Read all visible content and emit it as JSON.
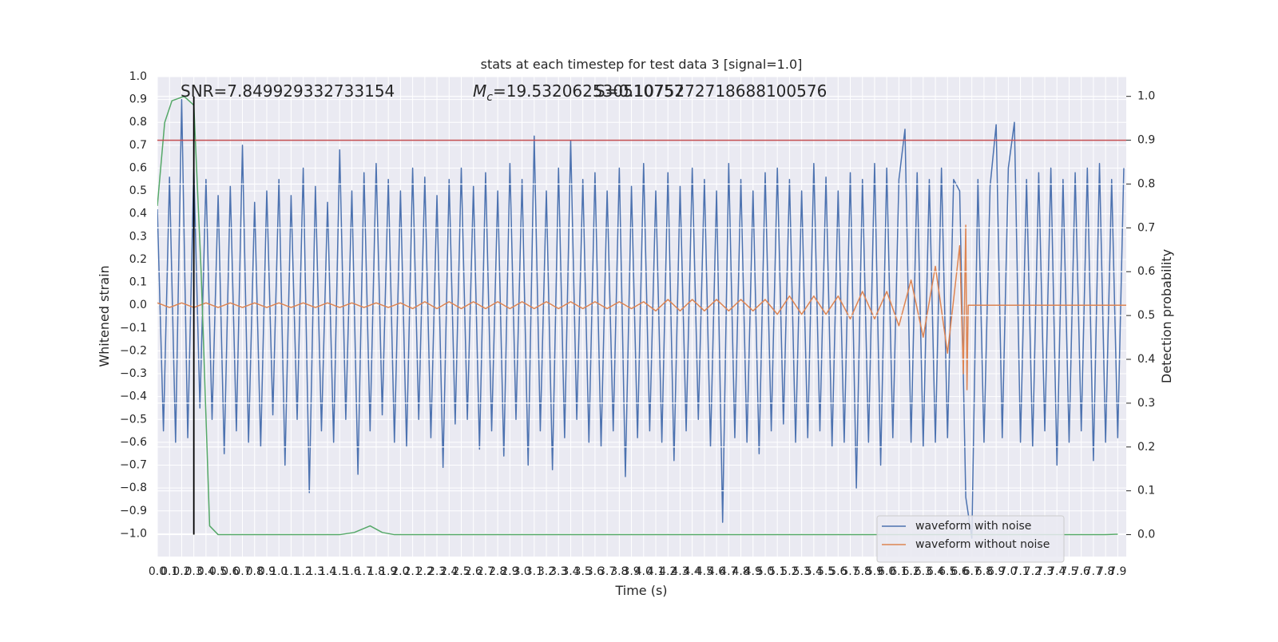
{
  "chart_data": {
    "type": "line",
    "title": "stats at each timestep for test data 3 [signal=1.0]",
    "xlabel": "Time (s)",
    "ylabel": "Whitened strain",
    "y2label": "Detection probability",
    "grid": true,
    "legend": "lower right",
    "xlim": [
      0,
      7.97
    ],
    "ylim": [
      -1.1,
      1.0
    ],
    "y2lim": [
      -0.05,
      1.045
    ],
    "xticks": [
      {
        "value": 0,
        "label": "0.0"
      },
      0.1,
      0.2,
      0.3,
      0.4,
      0.5,
      0.6,
      0.7,
      0.8,
      0.9,
      {
        "value": 1,
        "label": "1.0"
      },
      1.1,
      1.2,
      1.3,
      1.4,
      1.5,
      1.6,
      1.7,
      1.8,
      1.9,
      {
        "value": 2,
        "label": "2.0"
      },
      2.1,
      2.2,
      2.3,
      2.4,
      2.5,
      2.6,
      2.7,
      2.8,
      2.9,
      {
        "value": 3,
        "label": "3.0"
      },
      3.1,
      3.2,
      3.3,
      3.4,
      3.5,
      3.6,
      3.7,
      3.8,
      3.9,
      {
        "value": 4,
        "label": "4.0"
      },
      4.1,
      4.2,
      4.3,
      4.4,
      4.5,
      4.6,
      4.7,
      4.8,
      4.9,
      {
        "value": 5,
        "label": "5.0"
      },
      5.1,
      5.2,
      5.3,
      5.4,
      5.5,
      5.6,
      5.7,
      5.8,
      5.9,
      {
        "value": 6,
        "label": "6.0"
      },
      6.1,
      6.2,
      6.3,
      6.4,
      6.5,
      6.6,
      6.7,
      6.8,
      6.9,
      {
        "value": 7,
        "label": "7.0"
      },
      7.1,
      7.2,
      7.3,
      7.4,
      7.5,
      7.6,
      7.7,
      7.8,
      7.9
    ],
    "yticks": [
      {
        "value": -1,
        "label": "−1.0"
      },
      {
        "value": -0.9,
        "label": "−0.9"
      },
      {
        "value": -0.8,
        "label": "−0.8"
      },
      {
        "value": -0.7,
        "label": "−0.7"
      },
      {
        "value": -0.6,
        "label": "−0.6"
      },
      {
        "value": -0.5,
        "label": "−0.5"
      },
      {
        "value": -0.4,
        "label": "−0.4"
      },
      {
        "value": -0.3,
        "label": "−0.3"
      },
      {
        "value": -0.2,
        "label": "−0.2"
      },
      {
        "value": -0.1,
        "label": "−0.1"
      },
      {
        "value": 0,
        "label": "0.0"
      },
      0.1,
      0.2,
      0.3,
      0.4,
      0.5,
      0.6,
      0.7,
      0.8,
      0.9,
      {
        "value": 1,
        "label": "1.0"
      }
    ],
    "y2ticks": [
      {
        "value": 0,
        "label": "0.0"
      },
      0.1,
      0.2,
      0.3,
      0.4,
      0.5,
      0.6,
      0.7,
      0.8,
      0.9,
      {
        "value": 1,
        "label": "1.0"
      }
    ],
    "annotations": [
      {
        "text": "SNR=7.849929332733154"
      },
      {
        "symbol": "M",
        "subscript": "c",
        "text": "=19.532062530510757"
      },
      {
        "text": "S=0.1075272718688100576"
      }
    ],
    "series": [
      {
        "name": "waveform with noise",
        "color": "#4c72b0",
        "x": [
          0,
          0.05,
          0.1,
          0.15,
          0.2,
          0.25,
          0.3,
          0.35,
          0.4,
          0.45,
          0.5,
          0.55,
          0.6,
          0.65,
          0.7,
          0.75,
          0.8,
          0.85,
          0.9,
          0.95,
          1,
          1.05,
          1.1,
          1.15,
          1.2,
          1.25,
          1.3,
          1.35,
          1.4,
          1.45,
          1.5,
          1.55,
          1.6,
          1.65,
          1.7,
          1.75,
          1.8,
          1.85,
          1.9,
          1.95,
          2,
          2.05,
          2.1,
          2.15,
          2.2,
          2.25,
          2.3,
          2.35,
          2.4,
          2.45,
          2.5,
          2.55,
          2.6,
          2.65,
          2.7,
          2.75,
          2.8,
          2.85,
          2.9,
          2.95,
          3,
          3.05,
          3.1,
          3.15,
          3.2,
          3.25,
          3.3,
          3.35,
          3.4,
          3.45,
          3.5,
          3.55,
          3.6,
          3.65,
          3.7,
          3.75,
          3.8,
          3.85,
          3.9,
          3.95,
          4,
          4.05,
          4.1,
          4.15,
          4.2,
          4.25,
          4.3,
          4.35,
          4.4,
          4.45,
          4.5,
          4.55,
          4.6,
          4.65,
          4.7,
          4.75,
          4.8,
          4.85,
          4.9,
          4.95,
          5,
          5.05,
          5.1,
          5.15,
          5.2,
          5.25,
          5.3,
          5.35,
          5.4,
          5.45,
          5.5,
          5.55,
          5.6,
          5.65,
          5.7,
          5.75,
          5.8,
          5.85,
          5.9,
          5.95,
          6,
          6.05,
          6.1,
          6.15,
          6.2,
          6.25,
          6.3,
          6.35,
          6.4,
          6.45,
          6.5,
          6.55,
          6.6,
          6.65,
          6.7,
          6.75,
          6.8,
          6.85,
          6.9,
          6.95,
          7,
          7.05,
          7.1,
          7.15,
          7.2,
          7.25,
          7.3,
          7.35,
          7.4,
          7.45,
          7.5,
          7.55,
          7.6,
          7.65,
          7.7,
          7.75,
          7.8,
          7.85,
          7.9,
          7.95
        ],
        "values": [
          0.42,
          -0.55,
          0.56,
          -0.6,
          0.9,
          -0.58,
          0.6,
          -0.45,
          0.55,
          -0.5,
          0.48,
          -0.65,
          0.52,
          -0.55,
          0.7,
          -0.6,
          0.45,
          -0.62,
          0.5,
          -0.48,
          0.55,
          -0.7,
          0.48,
          -0.5,
          0.6,
          -0.82,
          0.52,
          -0.55,
          0.45,
          -0.6,
          0.68,
          -0.5,
          0.5,
          -0.74,
          0.58,
          -0.55,
          0.62,
          -0.48,
          0.55,
          -0.6,
          0.5,
          -0.62,
          0.6,
          -0.5,
          0.56,
          -0.58,
          0.48,
          -0.71,
          0.55,
          -0.52,
          0.6,
          -0.5,
          0.52,
          -0.63,
          0.58,
          -0.55,
          0.5,
          -0.66,
          0.62,
          -0.5,
          0.55,
          -0.7,
          0.74,
          -0.55,
          0.5,
          -0.72,
          0.6,
          -0.58,
          0.72,
          -0.5,
          0.55,
          -0.6,
          0.58,
          -0.62,
          0.5,
          -0.55,
          0.6,
          -0.75,
          0.52,
          -0.58,
          0.62,
          -0.55,
          0.5,
          -0.6,
          0.58,
          -0.68,
          0.52,
          -0.55,
          0.6,
          -0.5,
          0.55,
          -0.62,
          0.5,
          -0.95,
          0.62,
          -0.58,
          0.55,
          -0.6,
          0.5,
          -0.65,
          0.58,
          -0.55,
          0.6,
          -0.52,
          0.55,
          -0.6,
          0.5,
          -0.58,
          0.62,
          -0.55,
          0.56,
          -0.62,
          0.5,
          -0.6,
          0.58,
          -0.8,
          0.55,
          -0.6,
          0.62,
          -0.7,
          0.6,
          -0.58,
          0.55,
          0.77,
          -0.6,
          0.58,
          -0.62,
          0.55,
          -0.6,
          0.6,
          -0.58,
          0.55,
          0.5,
          -0.84,
          -1.02,
          0.55,
          -0.6,
          0.52,
          0.79,
          -0.58,
          0.6,
          0.8,
          -0.6,
          0.55,
          -0.62,
          0.58,
          -0.55,
          0.6,
          -0.7,
          0.55,
          -0.6,
          0.58,
          -0.55,
          0.6,
          -0.68,
          0.62,
          -0.6,
          0.55,
          -0.58,
          0.6
        ]
      },
      {
        "name": "waveform without noise",
        "color": "#dd8452",
        "x": [
          0,
          0.1,
          0.2,
          0.3,
          0.4,
          0.5,
          0.6,
          0.7,
          0.8,
          0.9,
          1,
          1.1,
          1.2,
          1.3,
          1.4,
          1.5,
          1.6,
          1.7,
          1.8,
          1.9,
          2,
          2.1,
          2.2,
          2.3,
          2.4,
          2.5,
          2.6,
          2.7,
          2.8,
          2.9,
          3,
          3.1,
          3.2,
          3.3,
          3.4,
          3.5,
          3.6,
          3.7,
          3.8,
          3.9,
          4,
          4.1,
          4.2,
          4.3,
          4.4,
          4.5,
          4.6,
          4.7,
          4.8,
          4.9,
          5,
          5.1,
          5.2,
          5.3,
          5.4,
          5.5,
          5.6,
          5.7,
          5.8,
          5.9,
          6,
          6.1,
          6.2,
          6.3,
          6.4,
          6.5,
          6.6,
          6.63,
          6.65,
          6.66,
          6.67,
          7.97
        ],
        "values": [
          0.01,
          -0.01,
          0.01,
          -0.01,
          0.01,
          -0.01,
          0.01,
          -0.01,
          0.01,
          -0.01,
          0.01,
          -0.01,
          0.01,
          -0.01,
          0.01,
          -0.01,
          0.01,
          -0.01,
          0.01,
          -0.01,
          0.01,
          -0.015,
          0.015,
          -0.015,
          0.015,
          -0.015,
          0.015,
          -0.015,
          0.015,
          -0.015,
          0.015,
          -0.015,
          0.015,
          -0.015,
          0.015,
          -0.015,
          0.015,
          -0.015,
          0.015,
          -0.015,
          0.015,
          -0.025,
          0.025,
          -0.025,
          0.025,
          -0.025,
          0.025,
          -0.025,
          0.025,
          -0.025,
          0.025,
          -0.04,
          0.04,
          -0.04,
          0.04,
          -0.04,
          0.04,
          -0.06,
          0.06,
          -0.06,
          0.06,
          -0.09,
          0.11,
          -0.14,
          0.17,
          -0.21,
          0.26,
          -0.3,
          0.35,
          -0.37,
          0,
          0
        ]
      },
      {
        "color": "#55a868",
        "axis": "y2",
        "x": [
          0,
          0.06,
          0.12,
          0.22,
          0.3,
          0.36,
          0.43,
          0.5,
          0.6,
          1,
          1.5,
          1.62,
          1.75,
          1.85,
          1.95,
          2.1,
          3,
          4,
          5,
          6,
          7,
          7.8,
          7.9
        ],
        "values": [
          0.75,
          0.94,
          0.99,
          1.0,
          0.98,
          0.6,
          0.02,
          0.0,
          0.0,
          0.0,
          0.0,
          0.005,
          0.02,
          0.005,
          0.0,
          0.0,
          0.0,
          0.0,
          0.0,
          0.0,
          0.0,
          0.0,
          0.001
        ]
      }
    ],
    "hline": {
      "y": 0.9,
      "axis": "y2",
      "color": "#c44e52"
    },
    "vline": {
      "x": 0.3,
      "y": [
        0,
        1.0
      ],
      "axis": "y2",
      "color": "#000000"
    }
  }
}
